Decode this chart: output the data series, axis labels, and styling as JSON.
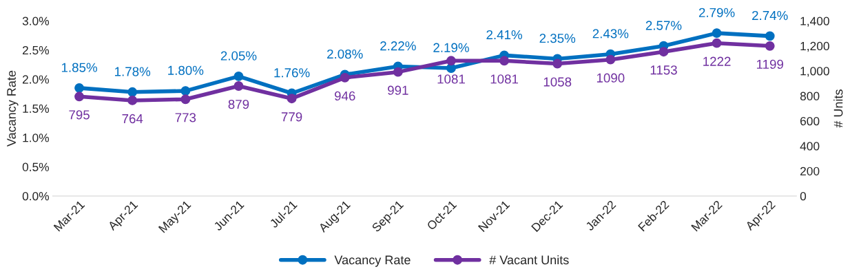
{
  "chart_data": {
    "type": "line",
    "ylabel": "Vacancy Rate",
    "y2label": "# Units",
    "categories": [
      "Mar-21",
      "Apr-21",
      "May-21",
      "Jun-21",
      "Jul-21",
      "Aug-21",
      "Sep-21",
      "Oct-21",
      "Nov-21",
      "Dec-21",
      "Jan-22",
      "Feb-22",
      "Mar-22",
      "Apr-22"
    ],
    "series": [
      {
        "name": "Vacancy Rate",
        "color": "#0070c0",
        "values": [
          1.85,
          1.78,
          1.8,
          2.05,
          1.76,
          2.08,
          2.22,
          2.19,
          2.41,
          2.35,
          2.43,
          2.57,
          2.79,
          2.74
        ],
        "value_labels": [
          "1.85%",
          "1.78%",
          "1.80%",
          "2.05%",
          "1.76%",
          "2.08%",
          "2.22%",
          "2.19%",
          "2.41%",
          "2.35%",
          "2.43%",
          "2.57%",
          "2.79%",
          "2.74%"
        ]
      },
      {
        "name": "# Vacant Units",
        "color": "#7030a0",
        "axis": "y2",
        "values": [
          795,
          764,
          773,
          879,
          779,
          946,
          991,
          1081,
          1081,
          1058,
          1090,
          1153,
          1222,
          1199
        ],
        "value_labels": [
          "795",
          "764",
          "773",
          "879",
          "779",
          "946",
          "991",
          "1081",
          "1081",
          "1058",
          "1090",
          "1153",
          "1222",
          "1199"
        ]
      }
    ],
    "ylim": [
      0,
      3.0
    ],
    "yticks": [
      {
        "value": 0,
        "label": "0.0%"
      },
      {
        "value": 0.5,
        "label": "0.5%"
      },
      {
        "value": 1.0,
        "label": "1.0%"
      },
      {
        "value": 1.5,
        "label": "1.5%"
      },
      {
        "value": 2.0,
        "label": "2.0%"
      },
      {
        "value": 2.5,
        "label": "2.5%"
      },
      {
        "value": 3.0,
        "label": "3.0%"
      }
    ],
    "y2lim": [
      0,
      1400
    ],
    "y2ticks": [
      0,
      200,
      400,
      600,
      800,
      {
        "value": 1000,
        "label": "1,000"
      },
      {
        "value": 1200,
        "label": "1,200"
      },
      {
        "value": 1400,
        "label": "1,400"
      }
    ],
    "marker": "circle",
    "line_style": "solid",
    "grid": false,
    "legend": "bottom"
  }
}
